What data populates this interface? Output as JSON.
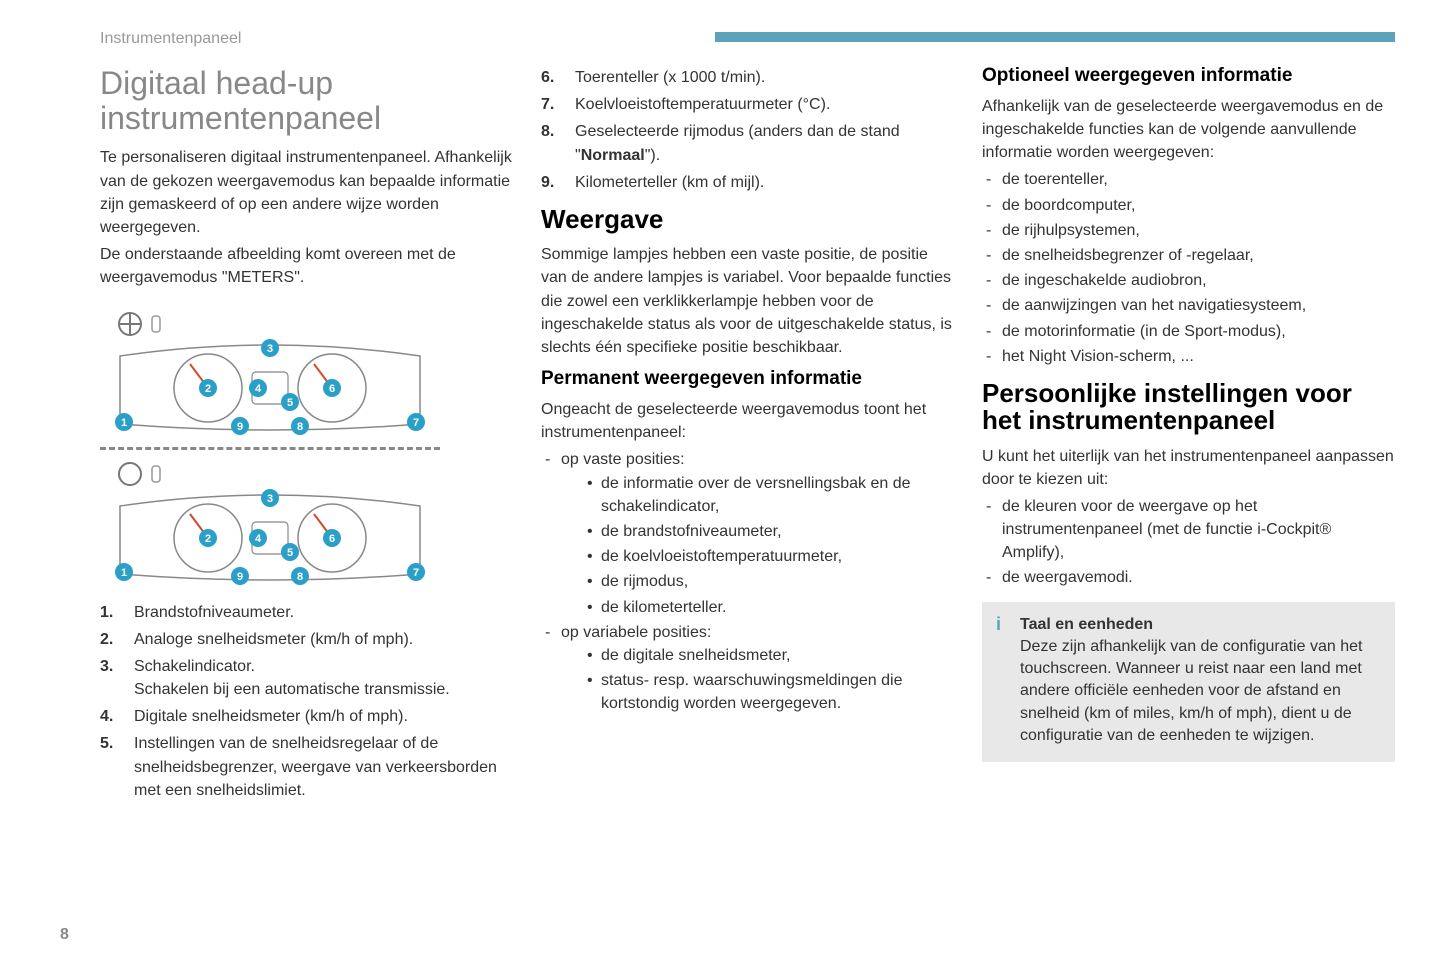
{
  "header": {
    "section_label": "Instrumentenpaneel"
  },
  "col1": {
    "main_title": "Digitaal head-up instrumentenpaneel",
    "intro1": "Te personaliseren digitaal instrumentenpaneel. Afhankelijk van de gekozen weergavemodus kan bepaalde informatie zijn gemaskeerd of op een andere wijze worden weergegeven.",
    "intro2": "De onderstaande afbeelding komt overeen met de weergavemodus \"METERS\".",
    "legend": [
      {
        "n": "1.",
        "t": "Brandstofniveaumeter."
      },
      {
        "n": "2.",
        "t": "Analoge snelheidsmeter (km/h of mph)."
      },
      {
        "n": "3.",
        "t": "Schakelindicator.\nSchakelen bij een automatische transmissie."
      },
      {
        "n": "4.",
        "t": "Digitale snelheidsmeter (km/h of mph)."
      },
      {
        "n": "5.",
        "t": "Instellingen van de snelheidsregelaar of de snelheidsbegrenzer, weergave van verkeersborden met een snelheidslimiet."
      }
    ]
  },
  "col2": {
    "legend_cont": [
      {
        "n": "6.",
        "t": "Toerenteller (x 1000 t/min)."
      },
      {
        "n": "7.",
        "t": "Koelvloeistoftemperatuurmeter (°C)."
      },
      {
        "n": "8.",
        "t": "Geselecteerde rijmodus (anders dan de stand \"Normaal\")."
      },
      {
        "n": "9.",
        "t": "Kilometerteller (km of mijl)."
      }
    ],
    "weergave_title": "Weergave",
    "weergave_p": "Sommige lampjes hebben een vaste positie, de positie van de andere lampjes is variabel. Voor bepaalde functies die zowel een verklikkerlampje hebben voor de ingeschakelde status als voor de uitgeschakelde status, is slechts één specifieke positie beschikbaar.",
    "perm_title": "Permanent weergegeven informatie",
    "perm_intro": "Ongeacht de geselecteerde weergavemodus toont het instrumentenpaneel:",
    "perm_fixed_label": "op vaste posities:",
    "perm_fixed": [
      "de informatie over de versnellingsbak en de schakelindicator,",
      "de brandstofniveaumeter,",
      "de koelvloeistoftemperatuurmeter,",
      "de rijmodus,",
      "de kilometerteller."
    ],
    "perm_var_label": "op variabele posities:",
    "perm_var": [
      "de digitale snelheidsmeter,",
      "status- resp. waarschuwingsmeldingen die kortstondig worden weergegeven."
    ]
  },
  "col3": {
    "opt_title": "Optioneel weergegeven informatie",
    "opt_intro": "Afhankelijk van de geselecteerde weergavemodus en de ingeschakelde functies kan de volgende aanvullende informatie worden weergegeven:",
    "opt_items": [
      "de toerenteller,",
      "de boordcomputer,",
      "de rijhulpsystemen,",
      "de snelheidsbegrenzer of -regelaar,",
      "de ingeschakelde audiobron,",
      "de aanwijzingen van het navigatiesysteem,",
      "de motorinformatie (in de Sport-modus),",
      "het Night Vision-scherm, ..."
    ],
    "pers_title": "Persoonlijke instellingen voor het instrumentenpaneel",
    "pers_intro": "U kunt het uiterlijk van het instrumentenpaneel aanpassen door te kiezen uit:",
    "pers_items": [
      "de kleuren voor de weergave op het instrumentenpaneel (met de functie i-Cockpit® Amplify),",
      "de weergavemodi."
    ],
    "info_title": "Taal en eenheden",
    "info_body": "Deze zijn afhankelijk van de configuratie van het touchscreen. Wanneer u reist naar een land met andere officiële eenheden voor de afstand en snelheid (km of miles, km/h of mph), dient u de configuratie van de eenheden te wijzigen."
  },
  "page_number": "8",
  "colors": {
    "accent": "#5ba3b8",
    "title_grey": "#888888",
    "header_grey": "#999999",
    "text": "#333333",
    "info_bg": "#e8e8e8"
  },
  "diagram": {
    "callouts": [
      "1",
      "2",
      "3",
      "4",
      "5",
      "6",
      "7",
      "8",
      "9"
    ],
    "callout_fill": "#2aa0c8",
    "callout_text": "#ffffff",
    "gauge_stroke": "#888888",
    "needle": "#d44a2a"
  }
}
